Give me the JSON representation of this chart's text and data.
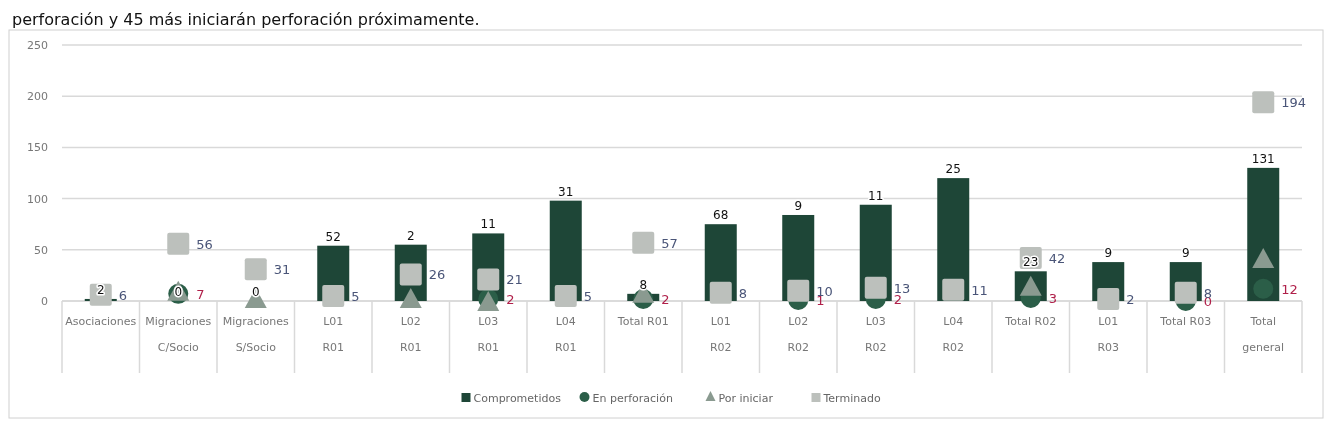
{
  "chart_data": {
    "type": "bar",
    "annotations": [
      "perforación y 45 más iniciarán perforación próximamente.",
      {
        "text": "2",
        "x": "Asociaciones",
        "y": 2
      },
      {
        "text": "0",
        "x": "Migraciones\nC/Socio",
        "y": 0
      },
      {
        "text": "0",
        "x": "Migraciones\nS/Socio",
        "y": 0
      },
      {
        "text": "52",
        "x": "L01\nR01",
        "y": 54
      },
      {
        "text": "2",
        "x": "L02\nR01",
        "y": 55
      },
      {
        "text": "11",
        "x": "L03\nR01",
        "y": 66
      },
      {
        "text": "31",
        "x": "L04\nR01",
        "y": 98
      },
      {
        "text": "8",
        "x": "Total R01",
        "y": 7
      },
      {
        "text": "68",
        "x": "L01\nR02",
        "y": 75
      },
      {
        "text": "9",
        "x": "L02\nR02",
        "y": 84
      },
      {
        "text": "11",
        "x": "L03\nR02",
        "y": 94
      },
      {
        "text": "25",
        "x": "L04\nR02",
        "y": 120
      },
      {
        "text": "23",
        "x": "Total R02",
        "y": 29
      },
      {
        "text": "9",
        "x": "L01\nR03",
        "y": 38
      },
      {
        "text": "9",
        "x": "Total R03",
        "y": 38
      },
      {
        "text": "131",
        "x": "Total\ngeneral",
        "y": 130
      }
    ],
    "categories": [
      "Asociaciones",
      "Migraciones\nC/Socio",
      "Migraciones\nS/Socio",
      "L01\nR01",
      "L02\nR01",
      "L03\nR01",
      "L04\nR01",
      "Total R01",
      "L01\nR02",
      "L02\nR02",
      "L03\nR02",
      "L04\nR02",
      "Total R02",
      "L01\nR03",
      "Total R03",
      "Total\ngeneral"
    ],
    "ylim": [
      0,
      250
    ],
    "yticks": [
      0,
      50,
      100,
      150,
      200,
      250
    ],
    "grid": "y",
    "legend": "bottom",
    "series": [
      {
        "name": "Comprometidos",
        "color": "#1e4637",
        "values": [
          2,
          0,
          0,
          54,
          55,
          66,
          98,
          7,
          75,
          84,
          94,
          120,
          29,
          38,
          38,
          130
        ]
      },
      {
        "name": "En perforación",
        "type": "scatter",
        "marker": "circle",
        "color": "#2b5e48",
        "values": [
          null,
          7,
          null,
          null,
          null,
          2,
          null,
          2,
          null,
          1,
          2,
          null,
          3,
          null,
          0,
          12
        ],
        "value_labels": [
          null,
          "7",
          null,
          null,
          null,
          "2",
          null,
          "2",
          null,
          "1",
          "2",
          null,
          "3",
          null,
          "0",
          "12"
        ]
      },
      {
        "name": "Por iniciar",
        "type": "scatter",
        "marker": "triangle",
        "color": "#8a9a90",
        "values": [
          null,
          10,
          3,
          null,
          3,
          0,
          null,
          8,
          null,
          null,
          null,
          null,
          15,
          null,
          null,
          42
        ]
      },
      {
        "name": "Terminado",
        "type": "scatter",
        "marker": "square",
        "color": "#bcc0bc",
        "values": [
          6,
          56,
          31,
          5,
          26,
          21,
          5,
          57,
          8,
          10,
          13,
          11,
          42,
          2,
          8,
          194
        ],
        "value_labels": [
          "6",
          "56",
          "31",
          "5",
          "26",
          "21",
          "5",
          "57",
          "8",
          "10",
          "13",
          "11",
          "42",
          "2",
          "8",
          "194"
        ]
      }
    ]
  }
}
